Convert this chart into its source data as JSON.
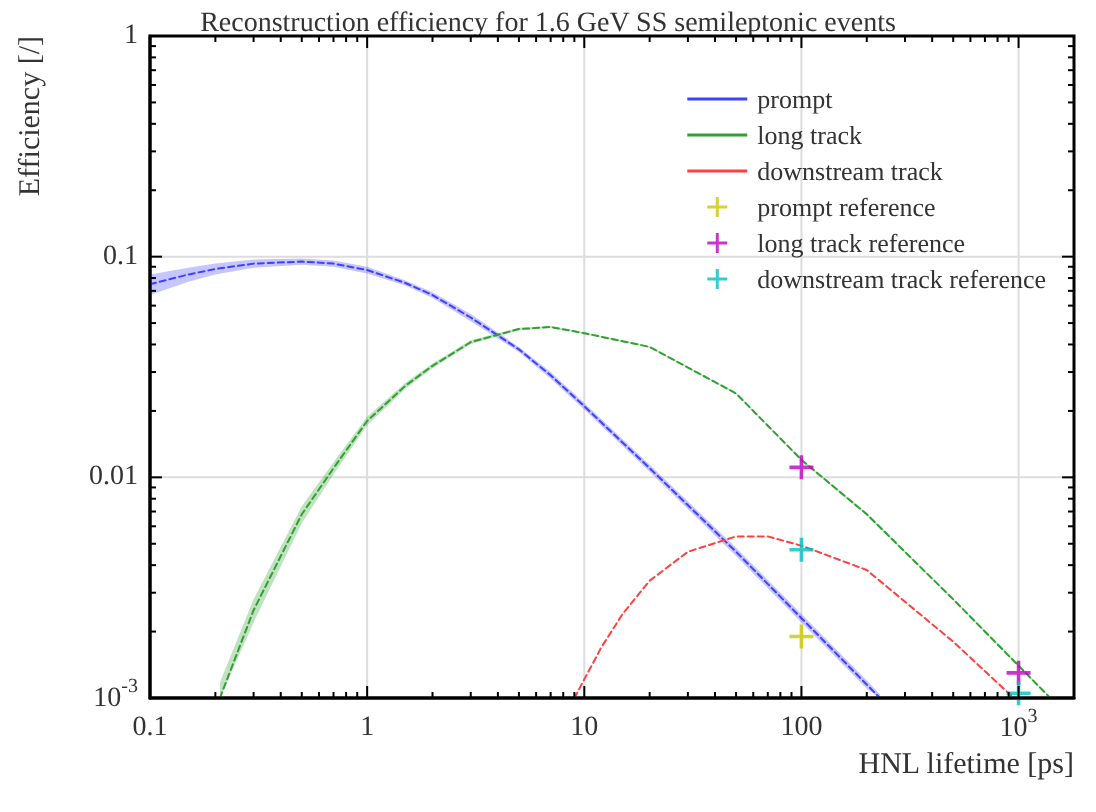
{
  "chart_data": {
    "type": "line",
    "title": "Reconstruction efficiency for 1.6 GeV SS semileptonic events",
    "xlabel": "HNL lifetime [ps]",
    "ylabel": "Efficiency [/]",
    "log": "xy",
    "xlim": [
      0.1,
      1800
    ],
    "ylim": [
      0.001,
      1
    ],
    "xticks": [
      0.1,
      1,
      10,
      100,
      {
        "value": 1000,
        "label": "10$^{3}$"
      }
    ],
    "yticks": [
      {
        "value": 0.001,
        "label": "10$^{-3}$"
      },
      0.01,
      0.1,
      1
    ],
    "grid": true,
    "legend": "top right",
    "line_style": "dashed",
    "marker": "none",
    "series": [
      {
        "name": "prompt",
        "color": "#4040ff",
        "x": [
          0.1,
          0.15,
          0.2,
          0.3,
          0.5,
          0.7,
          1,
          1.5,
          2,
          3,
          5,
          7,
          10,
          20,
          50,
          100,
          200,
          230
        ],
        "values": [
          0.075,
          0.083,
          0.088,
          0.093,
          0.095,
          0.093,
          0.087,
          0.076,
          0.067,
          0.053,
          0.038,
          0.029,
          0.021,
          0.011,
          0.0046,
          0.0023,
          0.00115,
          0.001
        ],
        "lower": [
          0.067,
          0.077,
          0.083,
          0.089,
          0.092,
          0.09,
          0.084,
          0.074,
          0.065,
          0.051,
          0.037,
          0.028,
          0.0203,
          0.0106,
          0.0044,
          0.0022,
          0.0011,
          0.001
        ],
        "upper": [
          0.083,
          0.089,
          0.093,
          0.097,
          0.098,
          0.096,
          0.09,
          0.078,
          0.069,
          0.055,
          0.039,
          0.03,
          0.0217,
          0.0114,
          0.0048,
          0.0024,
          0.0012,
          0.00104
        ]
      },
      {
        "name": "long track",
        "color": "#30a030",
        "x": [
          0.21,
          0.3,
          0.5,
          0.7,
          1,
          1.5,
          2,
          3,
          5,
          7,
          10,
          20,
          50,
          100,
          200,
          500,
          1000,
          1400
        ],
        "values": [
          0.001,
          0.0025,
          0.0068,
          0.011,
          0.018,
          0.026,
          0.032,
          0.041,
          0.047,
          0.048,
          0.045,
          0.039,
          0.024,
          0.012,
          0.0068,
          0.0028,
          0.0014,
          0.001
        ],
        "lower": [
          0.001,
          0.0022,
          0.0062,
          0.0103,
          0.0172,
          0.0252,
          0.0312,
          0.0402,
          0.0464,
          0.0475,
          0.0446,
          0.0387,
          0.0238,
          0.0119,
          0.0067,
          0.00277,
          0.00138,
          0.001
        ],
        "upper": [
          0.00118,
          0.0028,
          0.0074,
          0.0117,
          0.0188,
          0.0268,
          0.0328,
          0.0418,
          0.0476,
          0.0485,
          0.0454,
          0.0393,
          0.0242,
          0.0121,
          0.0069,
          0.00283,
          0.00142,
          0.00101
        ]
      },
      {
        "name": "downstream track",
        "color": "#ff4040",
        "x": [
          9,
          12,
          15,
          20,
          30,
          50,
          70,
          100,
          200,
          500,
          950
        ],
        "values": [
          0.001,
          0.0017,
          0.0024,
          0.0034,
          0.0046,
          0.0054,
          0.0054,
          0.0049,
          0.0038,
          0.0018,
          0.001
        ]
      },
      {
        "name": "prompt reference",
        "type": "scatter",
        "marker": "cross",
        "color": "#c8c800",
        "x": [
          100
        ],
        "values": [
          0.0019
        ]
      },
      {
        "name": "long track reference",
        "type": "scatter",
        "marker": "cross",
        "color": "#c000c0",
        "x": [
          100,
          1000
        ],
        "values": [
          0.0111,
          0.0013
        ]
      },
      {
        "name": "downstream track reference",
        "type": "scatter",
        "marker": "cross",
        "color": "#00c0c0",
        "x": [
          100,
          1000
        ],
        "values": [
          0.0047,
          0.00105
        ]
      }
    ]
  }
}
